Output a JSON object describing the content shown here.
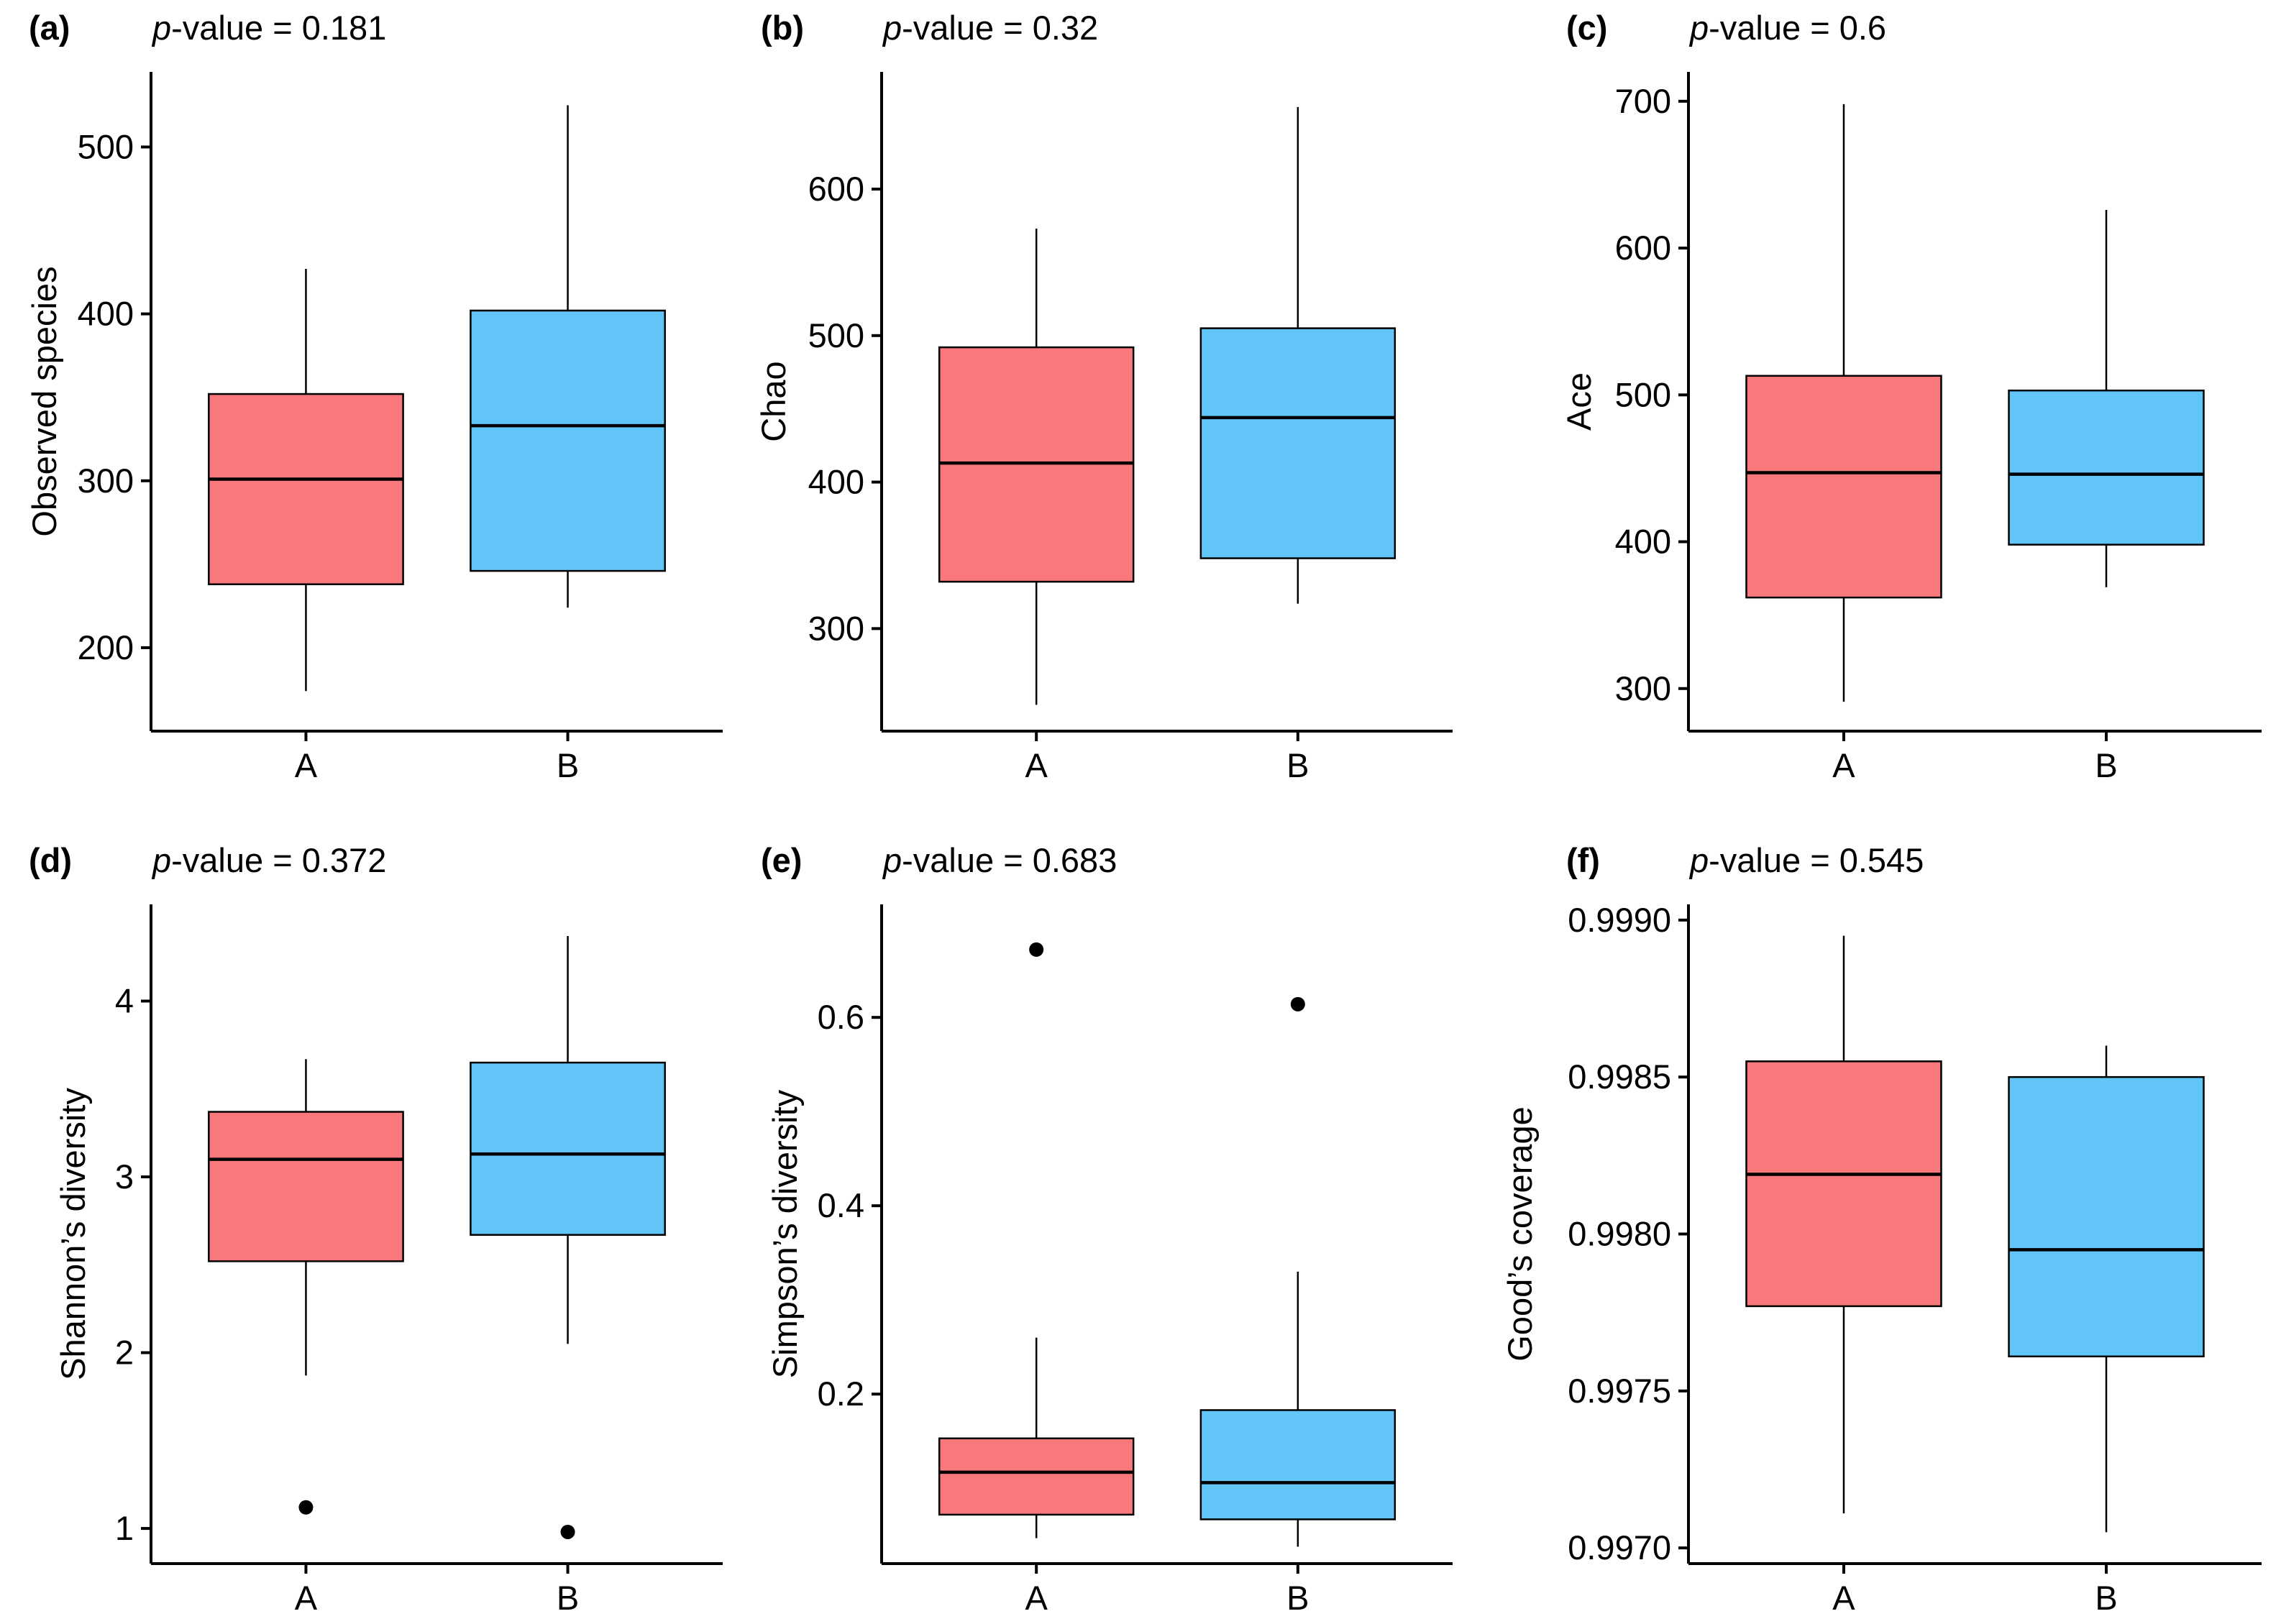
{
  "colors": {
    "A": "#F8787B",
    "B": "#62C5F7"
  },
  "chart_data": [
    {
      "type": "box",
      "panel": "(a)",
      "pvalue_label": "p-value = 0.181",
      "pvalue_italic": "p",
      "pvalue_rest": "-value = 0.181",
      "xlabel": "",
      "ylabel": "Observed species",
      "ylim": [
        150,
        545
      ],
      "yticks": [
        200,
        300,
        400,
        500
      ],
      "ytick_labels": [
        "200",
        "300",
        "400",
        "500"
      ],
      "categories": [
        "A",
        "B"
      ],
      "boxes": [
        {
          "name": "A",
          "min": 174,
          "q1": 238,
          "median": 301,
          "q3": 352,
          "max": 427,
          "outliers": []
        },
        {
          "name": "B",
          "min": 224,
          "q1": 246,
          "median": 333,
          "q3": 402,
          "max": 525,
          "outliers": []
        }
      ]
    },
    {
      "type": "box",
      "panel": "(b)",
      "pvalue_label": "p-value = 0.32",
      "pvalue_italic": "p",
      "pvalue_rest": "-value = 0.32",
      "xlabel": "",
      "ylabel": "Chao",
      "ylim": [
        230,
        680
      ],
      "yticks": [
        300,
        400,
        500,
        600
      ],
      "ytick_labels": [
        "300",
        "400",
        "500",
        "600"
      ],
      "categories": [
        "A",
        "B"
      ],
      "boxes": [
        {
          "name": "A",
          "min": 248,
          "q1": 332,
          "median": 413,
          "q3": 492,
          "max": 573,
          "outliers": []
        },
        {
          "name": "B",
          "min": 317,
          "q1": 348,
          "median": 444,
          "q3": 505,
          "max": 656,
          "outliers": []
        }
      ]
    },
    {
      "type": "box",
      "panel": "(c)",
      "pvalue_label": "p-value = 0.6",
      "pvalue_italic": "p",
      "pvalue_rest": "-value = 0.6",
      "xlabel": "",
      "ylabel": "Ace",
      "ylim": [
        271,
        720
      ],
      "yticks": [
        300,
        400,
        500,
        600,
        700
      ],
      "ytick_labels": [
        "300",
        "400",
        "500",
        "600",
        "700"
      ],
      "categories": [
        "A",
        "B"
      ],
      "boxes": [
        {
          "name": "A",
          "min": 291,
          "q1": 362,
          "median": 447,
          "q3": 513,
          "max": 698,
          "outliers": []
        },
        {
          "name": "B",
          "min": 369,
          "q1": 398,
          "median": 446,
          "q3": 503,
          "max": 626,
          "outliers": []
        }
      ]
    },
    {
      "type": "box",
      "panel": "(d)",
      "pvalue_label": "p-value = 0.372",
      "pvalue_italic": "p",
      "pvalue_rest": "-value = 0.372",
      "xlabel": "",
      "ylabel": "Shannon’s diversity",
      "ylim": [
        0.8,
        4.55
      ],
      "yticks": [
        1,
        2,
        3,
        4
      ],
      "ytick_labels": [
        "1",
        "2",
        "3",
        "4"
      ],
      "categories": [
        "A",
        "B"
      ],
      "boxes": [
        {
          "name": "A",
          "min": 1.87,
          "q1": 2.52,
          "median": 3.1,
          "q3": 3.37,
          "max": 3.67,
          "outliers": [
            1.12
          ]
        },
        {
          "name": "B",
          "min": 2.05,
          "q1": 2.67,
          "median": 3.13,
          "q3": 3.65,
          "max": 4.37,
          "outliers": [
            0.98
          ]
        }
      ]
    },
    {
      "type": "box",
      "panel": "(e)",
      "pvalue_label": "p-value = 0.683",
      "pvalue_italic": "p",
      "pvalue_rest": "-value = 0.683",
      "xlabel": "",
      "ylabel": "Simpson’s diversity",
      "ylim": [
        0.02,
        0.72
      ],
      "yticks": [
        0.2,
        0.4,
        0.6
      ],
      "ytick_labels": [
        "0.2",
        "0.4",
        "0.6"
      ],
      "categories": [
        "A",
        "B"
      ],
      "boxes": [
        {
          "name": "A",
          "min": 0.047,
          "q1": 0.072,
          "median": 0.117,
          "q3": 0.153,
          "max": 0.26,
          "outliers": [
            0.672
          ]
        },
        {
          "name": "B",
          "min": 0.038,
          "q1": 0.067,
          "median": 0.106,
          "q3": 0.183,
          "max": 0.33,
          "outliers": [
            0.614
          ]
        }
      ]
    },
    {
      "type": "box",
      "panel": "(f)",
      "pvalue_label": "p-value = 0.545",
      "pvalue_italic": "p",
      "pvalue_rest": "-value = 0.545",
      "xlabel": "",
      "ylabel": "Good’s coverage",
      "ylim": [
        0.99695,
        0.99905
      ],
      "yticks": [
        0.997,
        0.9975,
        0.998,
        0.9985,
        0.999
      ],
      "ytick_labels": [
        "0.9970",
        "0.9975",
        "0.9980",
        "0.9985",
        "0.9990"
      ],
      "categories": [
        "A",
        "B"
      ],
      "boxes": [
        {
          "name": "A",
          "min": 0.99711,
          "q1": 0.99777,
          "median": 0.99819,
          "q3": 0.99855,
          "max": 0.99895,
          "outliers": []
        },
        {
          "name": "B",
          "min": 0.99705,
          "q1": 0.99761,
          "median": 0.99795,
          "q3": 0.9985,
          "max": 0.9986,
          "outliers": []
        }
      ]
    }
  ]
}
